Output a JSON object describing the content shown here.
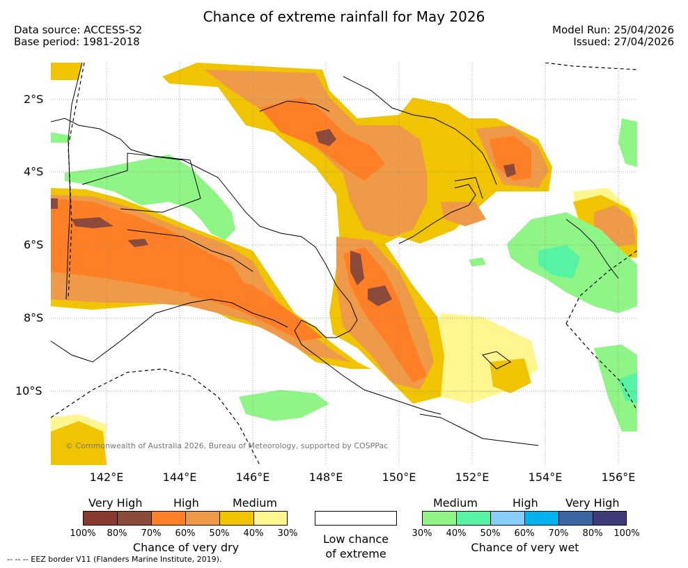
{
  "title": "Chance of extreme rainfall for May 2026",
  "meta": {
    "data_source": "Data source: ACCESS-S2",
    "base_period": "Base period: 1981-2018",
    "model_run": "Model Run: 25/04/2026",
    "issued": "Issued: 27/04/2026"
  },
  "axes": {
    "lon_labels": [
      "142°E",
      "144°E",
      "146°E",
      "148°E",
      "150°E",
      "152°E",
      "154°E",
      "156°E"
    ],
    "lat_labels": [
      "2°S",
      "4°S",
      "6°S",
      "8°S",
      "10°S"
    ]
  },
  "copyright": "© Commonwealth of Australia 2026, Bureau of Meteorology, supported by COSPPac",
  "legend": {
    "dry": {
      "levels": [
        "Very High",
        "High",
        "Medium"
      ],
      "colors": [
        "#8b3a2f",
        "#8b4a3a",
        "#ff7f27",
        "#ee9a48",
        "#f0c400",
        "#fff68f"
      ],
      "ticks": [
        "100%",
        "80%",
        "70%",
        "60%",
        "50%",
        "40%",
        "30%"
      ],
      "caption": "Chance of very dry"
    },
    "neutral": {
      "caption_line1": "Low chance",
      "caption_line2": "of extreme"
    },
    "wet": {
      "levels": [
        "Medium",
        "High",
        "Very High"
      ],
      "colors": [
        "#90f587",
        "#55f3a3",
        "#87cefa",
        "#00b2ee",
        "#3a66a3",
        "#3d3b7a"
      ],
      "ticks": [
        "30%",
        "40%",
        "50%",
        "60%",
        "70%",
        "80%",
        "100%"
      ],
      "caption": "Chance of very wet"
    }
  },
  "eez_note": "--  --  -- EEZ border V11 (Flanders Marine Institute, 2019)."
}
